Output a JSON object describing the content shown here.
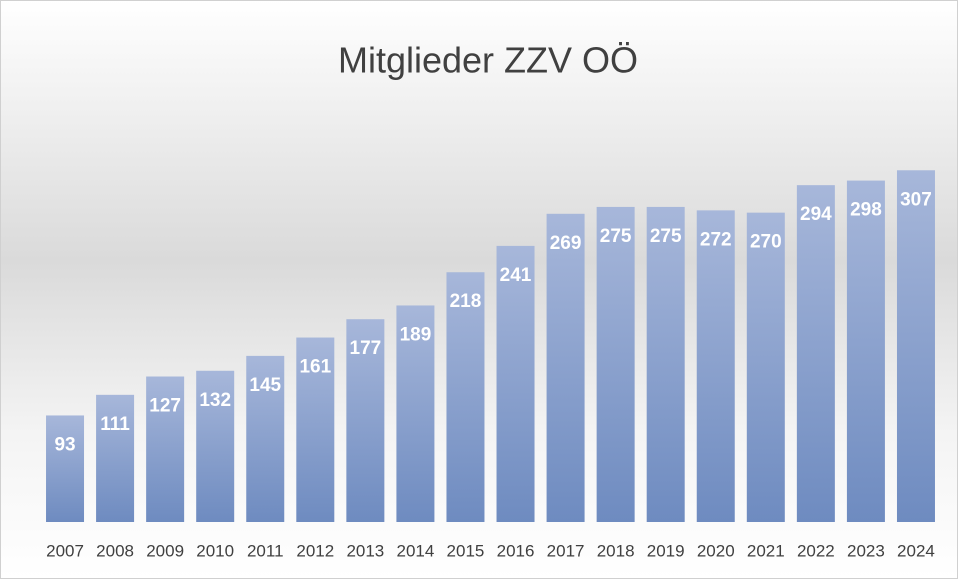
{
  "chart_data": {
    "type": "bar",
    "title": "Mitglieder ZZV OÖ",
    "categories": [
      "2007",
      "2008",
      "2009",
      "2010",
      "2011",
      "2012",
      "2013",
      "2014",
      "2015",
      "2016",
      "2017",
      "2018",
      "2019",
      "2020",
      "2021",
      "2022",
      "2023",
      "2024"
    ],
    "values": [
      93,
      111,
      127,
      132,
      145,
      161,
      177,
      189,
      218,
      241,
      269,
      275,
      275,
      272,
      270,
      294,
      298,
      307
    ],
    "color": "#7f98c9",
    "ylim": [
      0,
      350
    ]
  }
}
